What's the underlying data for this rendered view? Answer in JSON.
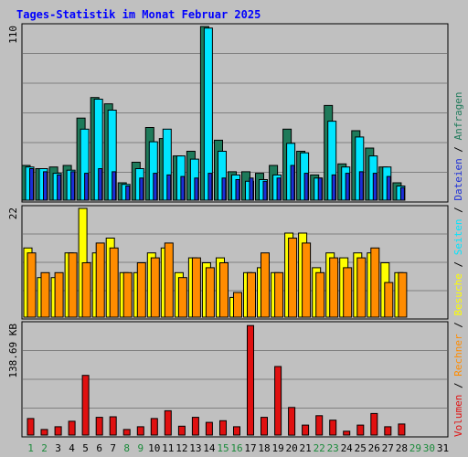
{
  "title": "Tages-Statistik im Monat Februar 2025",
  "colors": {
    "background": "#c0c0c0",
    "panel_border": "#000000",
    "title": "#0000ff",
    "gridline": "#808080",
    "anfragen": "#1e7a5a",
    "seiten": "#00e5ff",
    "dateien": "#1b2fd8",
    "besuche": "#ffff00",
    "rechner": "#ff8c00",
    "volumen": "#e01010",
    "weekday_label": "#000000",
    "weekend_label": "#1a8a3a"
  },
  "legend": {
    "anfragen": "Anfragen",
    "dateien": "Dateien",
    "seiten": "Seiten",
    "besuche": "Besuche",
    "rechner": "Rechner",
    "volumen": "Volumen",
    "sep": " / "
  },
  "chart_data": {
    "type": "bar",
    "title": "Tages-Statistik im Monat Februar 2025",
    "categories": [
      "1",
      "2",
      "3",
      "4",
      "5",
      "6",
      "7",
      "8",
      "9",
      "10",
      "11",
      "12",
      "13",
      "14",
      "15",
      "16",
      "17",
      "18",
      "19",
      "20",
      "21",
      "22",
      "23",
      "24",
      "25",
      "26",
      "27",
      "28",
      "29",
      "30",
      "31"
    ],
    "weekend_days": [
      "1",
      "2",
      "8",
      "9",
      "15",
      "16",
      "22",
      "23",
      "29",
      "30"
    ],
    "grid": true,
    "panels": [
      {
        "id": "requests",
        "ymax_label": "110",
        "ylim": [
          0,
          110
        ],
        "series": [
          {
            "name": "Anfragen",
            "color": "#1e7a5a",
            "values": [
              22,
              20,
              21,
              22,
              52,
              65,
              61,
              11,
              24,
              46,
              39,
              28,
              31,
              110,
              38,
              18,
              18,
              17,
              22,
              45,
              31,
              16,
              60,
              23,
              44,
              33,
              21,
              11,
              null,
              null,
              null
            ]
          },
          {
            "name": "Seiten",
            "color": "#00e5ff",
            "values": [
              21,
              20,
              17,
              19,
              45,
              64,
              57,
              10,
              20,
              37,
              45,
              28,
              26,
              109,
              31,
              16,
              12,
              13,
              16,
              36,
              30,
              14,
              50,
              21,
              40,
              28,
              21,
              9,
              null,
              null,
              null
            ]
          },
          {
            "name": "Dateien",
            "color": "#1b2fd8",
            "values": [
              20,
              18,
              16,
              18,
              17,
              20,
              18,
              9,
              14,
              17,
              16,
              15,
              14,
              17,
              14,
              13,
              14,
              12,
              14,
              22,
              17,
              14,
              16,
              17,
              18,
              17,
              15,
              8,
              null,
              null,
              null
            ]
          }
        ]
      },
      {
        "id": "visits",
        "ymax_label": "22",
        "ylim": [
          0,
          22
        ],
        "series": [
          {
            "name": "Besuche",
            "color": "#ffff00",
            "values": [
              14,
              8,
              8,
              13,
              22,
              13,
              16,
              9,
              9,
              13,
              14,
              9,
              12,
              11,
              12,
              4,
              9,
              10,
              9,
              17,
              17,
              10,
              13,
              12,
              13,
              13,
              11,
              9,
              null,
              null,
              null
            ]
          },
          {
            "name": "Rechner",
            "color": "#ff8c00",
            "values": [
              13,
              9,
              9,
              13,
              11,
              15,
              14,
              9,
              11,
              12,
              15,
              8,
              12,
              10,
              11,
              5,
              9,
              13,
              9,
              16,
              15,
              9,
              12,
              10,
              12,
              14,
              7,
              9,
              null,
              null,
              null
            ]
          }
        ]
      },
      {
        "id": "volume",
        "ymax_label": "138.69 KB",
        "ylim": [
          0,
          200
        ],
        "series": [
          {
            "name": "Volumen",
            "color": "#e01010",
            "values": [
              30,
              10,
              15,
              25,
              108,
              32,
              33,
              10,
              15,
              30,
              44,
              16,
              32,
              23,
              26,
              15,
              198,
              32,
              124,
              50,
              18,
              35,
              27,
              7,
              18,
              39,
              15,
              20,
              null,
              null,
              null
            ]
          }
        ]
      }
    ]
  }
}
